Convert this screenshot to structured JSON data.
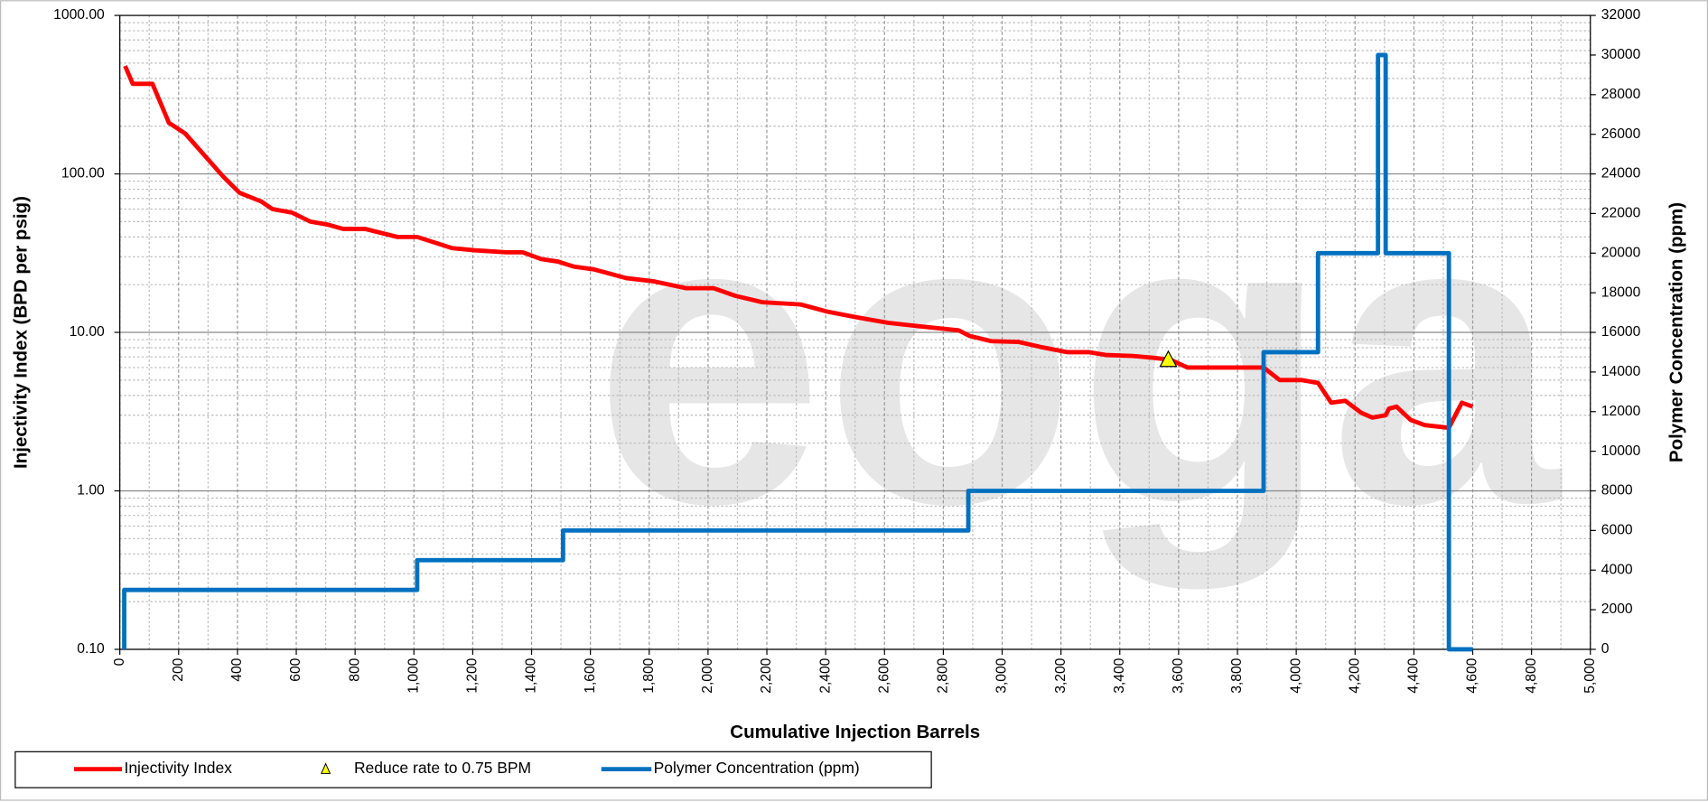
{
  "chart_data": {
    "type": "line",
    "watermark": "eoga",
    "xlabel": "Cumulative Injection Barrels",
    "ylabel": "Injectivity Index (BPD per psig)",
    "y2label": "Polymer Concentration (ppm)",
    "xlim": [
      0,
      5000
    ],
    "xticks": [
      0,
      200,
      400,
      600,
      800,
      {
        "value": 1000,
        "label": "1,000"
      },
      {
        "value": 1200,
        "label": "1,200"
      },
      {
        "value": 1400,
        "label": "1,400"
      },
      {
        "value": 1600,
        "label": "1,600"
      },
      {
        "value": 1800,
        "label": "1,800"
      },
      {
        "value": 2000,
        "label": "2,000"
      },
      {
        "value": 2200,
        "label": "2,200"
      },
      {
        "value": 2400,
        "label": "2,400"
      },
      {
        "value": 2600,
        "label": "2,600"
      },
      {
        "value": 2800,
        "label": "2,800"
      },
      {
        "value": 3000,
        "label": "3,000"
      },
      {
        "value": 3200,
        "label": "3,200"
      },
      {
        "value": 3400,
        "label": "3,400"
      },
      {
        "value": 3600,
        "label": "3,600"
      },
      {
        "value": 3800,
        "label": "3,800"
      },
      {
        "value": 4000,
        "label": "4,000"
      },
      {
        "value": 4200,
        "label": "4,200"
      },
      {
        "value": 4400,
        "label": "4,400"
      },
      {
        "value": 4600,
        "label": "4,600"
      },
      {
        "value": 4800,
        "label": "4,800"
      },
      {
        "value": 5000,
        "label": "5,000"
      }
    ],
    "ylim": [
      0.1,
      1000
    ],
    "log_scale": true,
    "yticks": [
      {
        "value": 0.1,
        "label": "0.10"
      },
      {
        "value": 1,
        "label": "1.00"
      },
      {
        "value": 10,
        "label": "10.00"
      },
      {
        "value": 100,
        "label": "100.00"
      },
      {
        "value": 1000,
        "label": "1000.00"
      }
    ],
    "y2lim": [
      0,
      32000
    ],
    "y2ticks": [
      0,
      2000,
      4000,
      6000,
      8000,
      10000,
      12000,
      14000,
      16000,
      18000,
      20000,
      22000,
      24000,
      26000,
      28000,
      30000,
      32000
    ],
    "grid": true,
    "legend": "bottom",
    "series": [
      {
        "name": "Injectivity Index",
        "color": "#ff0000",
        "marker": "line",
        "x": [
          18,
          44,
          111,
          167,
          222,
          352,
          407,
          481,
          519,
          585,
          648,
          704,
          759,
          833,
          944,
          1011,
          1130,
          1204,
          1315,
          1370,
          1433,
          1489,
          1544,
          1611,
          1722,
          1815,
          1926,
          2019,
          2093,
          2185,
          2315,
          2407,
          2500,
          2611,
          2704,
          2852,
          2889,
          2963,
          3056,
          3130,
          3222,
          3296,
          3352,
          3444,
          3519,
          3574,
          3630,
          3759,
          3889,
          3944,
          4019,
          4074,
          4119,
          4167,
          4222,
          4259,
          4304,
          4315,
          4341,
          4389,
          4437,
          4519,
          4563,
          4600
        ],
        "values": [
          480,
          370,
          370,
          210,
          180,
          96,
          76,
          67,
          60,
          57,
          50,
          48,
          45,
          45,
          40,
          40,
          34,
          33,
          32,
          32,
          29,
          28,
          26,
          25,
          22,
          21,
          19,
          19,
          17,
          15.5,
          15,
          13.5,
          12.5,
          11.5,
          11,
          10.3,
          9.5,
          8.8,
          8.7,
          8.1,
          7.5,
          7.5,
          7.2,
          7.1,
          6.9,
          6.7,
          6.0,
          6.0,
          6.0,
          5.0,
          5.0,
          4.8,
          3.6,
          3.7,
          3.1,
          2.9,
          3.0,
          3.3,
          3.4,
          2.8,
          2.6,
          2.5,
          3.6,
          3.4
        ]
      },
      {
        "name": "Reduce rate to 0.75 BPM",
        "color": "#ffff00",
        "marker": "triangle",
        "x": [
          3565
        ],
        "values": [
          6.7
        ]
      },
      {
        "name": "Polymer Concentration (ppm)",
        "color": "#0070c0",
        "marker": "line",
        "axis": "y2",
        "x": [
          15,
          15,
          1011,
          1011,
          1507,
          1507,
          2885,
          2885,
          3889,
          3889,
          4074,
          4074,
          4278,
          4278,
          4304,
          4304,
          4519,
          4519,
          4600
        ],
        "values": [
          0,
          3000,
          3000,
          4500,
          4500,
          6000,
          6000,
          8000,
          8000,
          15000,
          15000,
          20000,
          20000,
          30000,
          30000,
          20000,
          20000,
          0,
          0
        ]
      }
    ]
  }
}
